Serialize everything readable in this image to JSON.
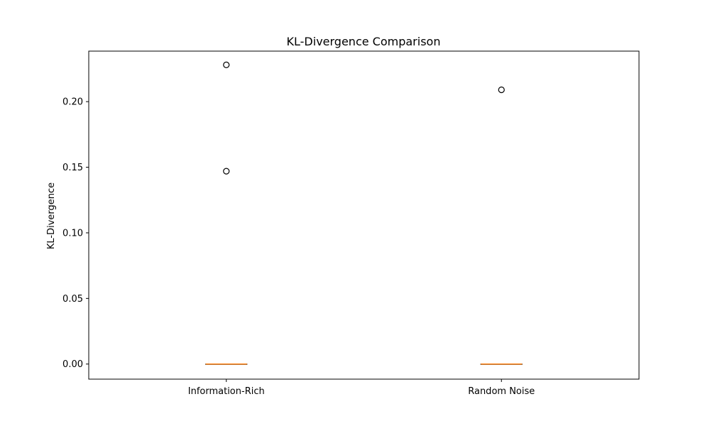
{
  "chart_data": {
    "type": "boxplot",
    "title": "KL-Divergence Comparison",
    "xlabel": "",
    "ylabel": "KL-Divergence",
    "categories": [
      "Information-Rich",
      "Random Noise"
    ],
    "ylim": [
      -0.0115,
      0.2385
    ],
    "yticks": [
      0.0,
      0.05,
      0.1,
      0.15,
      0.2
    ],
    "ytick_labels": [
      "0.00",
      "0.05",
      "0.10",
      "0.15",
      "0.20"
    ],
    "grid": false,
    "boxes": [
      {
        "category": "Information-Rich",
        "min": 0.0,
        "q1": 0.0,
        "median": 0.0,
        "q3": 0.0,
        "max": 0.0,
        "outliers": [
          0.228,
          0.147
        ]
      },
      {
        "category": "Random Noise",
        "min": 0.0,
        "q1": 0.0,
        "median": 0.0,
        "q3": 0.0,
        "max": 0.0,
        "outliers": [
          0.209
        ]
      }
    ],
    "colors": {
      "box": "#000000",
      "median": "#ff7f0e",
      "outlier_edge": "#000000",
      "axes": "#000000"
    }
  }
}
